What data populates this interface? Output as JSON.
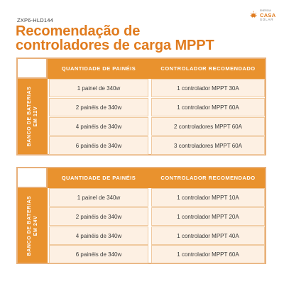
{
  "code": "ZXP6-HLD144",
  "title_line1": "Recomendação de",
  "title_line2": "controladores de carga MPPT",
  "logo": {
    "small": "ENERGIA",
    "brand": "CASA",
    "sub": "SOLAR",
    "accent": "#e07b1e"
  },
  "colors": {
    "orange": "#e9922e",
    "title": "#e07b1e",
    "cell_bg": "#fdf0e3",
    "border": "#e8b07a"
  },
  "header": {
    "col1": "QUANTIDADE DE PAINÉIS",
    "col2": "CONTROLADOR RECOMENDADO"
  },
  "tables": [
    {
      "side_line1": "BANCO DE BATERIAS",
      "side_line2": "EM 12V",
      "rows": [
        {
          "panels": "1 painel de 340w",
          "controller": "1 controlador MPPT 30A"
        },
        {
          "panels": "2 painéis de 340w",
          "controller": "1 controlador MPPT 60A"
        },
        {
          "panels": "4 painéis de 340w",
          "controller": "2 controladores MPPT 60A"
        },
        {
          "panels": "6 painéis de 340w",
          "controller": "3 controladores MPPT 60A"
        }
      ]
    },
    {
      "side_line1": "BANCO DE BATERIAS",
      "side_line2": "EM 24V",
      "rows": [
        {
          "panels": "1 painel de 340w",
          "controller": "1 controlador MPPT 10A"
        },
        {
          "panels": "2 painéis de 340w",
          "controller": "1 controlador MPPT 20A"
        },
        {
          "panels": "4 painéis de 340w",
          "controller": "1 controlador MPPT 40A"
        },
        {
          "panels": "6 painéis de 340w",
          "controller": "1 controlador MPPT 60A"
        }
      ]
    }
  ]
}
